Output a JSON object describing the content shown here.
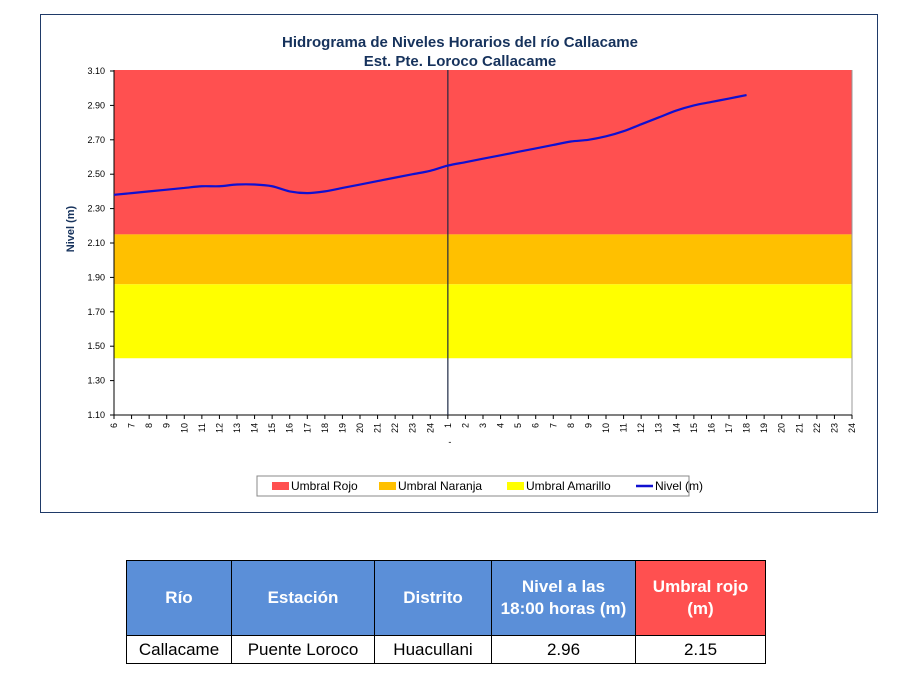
{
  "chart_data": {
    "type": "line",
    "title": "Hidrograma de Niveles Horarios del río Callacame",
    "subtitle": "Est. Pte. Loroco Callacame",
    "ylabel": "Nivel (m)",
    "xlabel": "",
    "ylim": [
      1.1,
      3.1
    ],
    "yticks": [
      "1.10",
      "1.30",
      "1.50",
      "1.70",
      "1.90",
      "2.10",
      "2.30",
      "2.50",
      "2.70",
      "2.90",
      "3.10"
    ],
    "x": [
      "6",
      "7",
      "8",
      "9",
      "10",
      "11",
      "12",
      "13",
      "14",
      "15",
      "16",
      "17",
      "18",
      "19",
      "20",
      "21",
      "22",
      "23",
      "24",
      "1",
      "2",
      "3",
      "4",
      "5",
      "6",
      "7",
      "8",
      "9",
      "10",
      "11",
      "12",
      "13",
      "14",
      "15",
      "16",
      "17",
      "18",
      "19",
      "20",
      "21",
      "22",
      "23",
      "24"
    ],
    "day_separator_index": 19,
    "day_separator_label": "-",
    "bands": [
      {
        "name": "Umbral Rojo",
        "from": 2.15,
        "to": 3.14,
        "color": "#ff5050"
      },
      {
        "name": "Umbral Naranja",
        "from": 1.86,
        "to": 2.15,
        "color": "#ffc000"
      },
      {
        "name": "Umbral Amarillo",
        "from": 1.43,
        "to": 1.86,
        "color": "#ffff00"
      }
    ],
    "series": [
      {
        "name": "Nivel (m)",
        "color": "#1010d0",
        "values": [
          2.38,
          2.39,
          2.4,
          2.41,
          2.42,
          2.43,
          2.43,
          2.44,
          2.44,
          2.43,
          2.4,
          2.39,
          2.4,
          2.42,
          2.44,
          2.46,
          2.48,
          2.5,
          2.52,
          2.55,
          2.57,
          2.59,
          2.61,
          2.63,
          2.65,
          2.67,
          2.69,
          2.7,
          2.72,
          2.75,
          2.79,
          2.83,
          2.87,
          2.9,
          2.92,
          2.94,
          2.96,
          null,
          null,
          null,
          null,
          null,
          null
        ]
      }
    ],
    "legend": {
      "position": "bottom",
      "items": [
        {
          "label": "Umbral Rojo",
          "color": "#ff5050",
          "kind": "box"
        },
        {
          "label": "Umbral Naranja",
          "color": "#ffc000",
          "kind": "box"
        },
        {
          "label": "Umbral Amarillo",
          "color": "#ffff00",
          "kind": "box"
        },
        {
          "label": "Nivel (m)",
          "color": "#1010d0",
          "kind": "line"
        }
      ]
    },
    "grid": false
  },
  "table": {
    "headers": [
      "Río",
      "Estación",
      "Distrito",
      "Nivel a las 18:00 horas (m)",
      "Umbral rojo (m)"
    ],
    "row": [
      "Callacame",
      "Puente Loroco",
      "Huacullani",
      "2.96",
      "2.15"
    ]
  }
}
